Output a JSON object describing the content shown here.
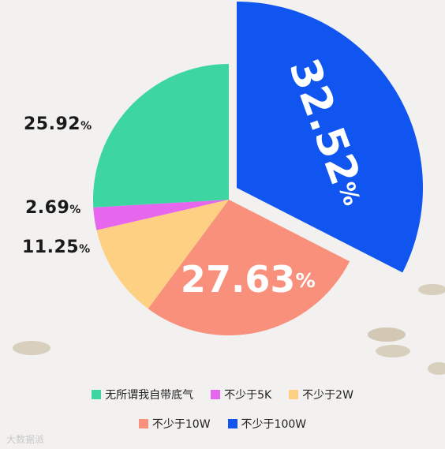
{
  "chart_data": {
    "type": "pie",
    "slices": [
      {
        "label": "无所谓我自带底气",
        "value": 25.92,
        "display": "25.92",
        "color": "#3dd6a3"
      },
      {
        "label": "不少于5K",
        "value": 2.69,
        "display": "2.69",
        "color": "#e766ee"
      },
      {
        "label": "不少于2W",
        "value": 11.25,
        "display": "11.25",
        "color": "#fdd083"
      },
      {
        "label": "不少于10W",
        "value": 27.63,
        "display": "27.63",
        "color": "#f9907c"
      },
      {
        "label": "不少于100W",
        "value": 32.52,
        "display": "32.52",
        "color": "#1055f0"
      }
    ],
    "percent_sign": "%",
    "legend_position": "bottom"
  },
  "watermark": "大数据派"
}
